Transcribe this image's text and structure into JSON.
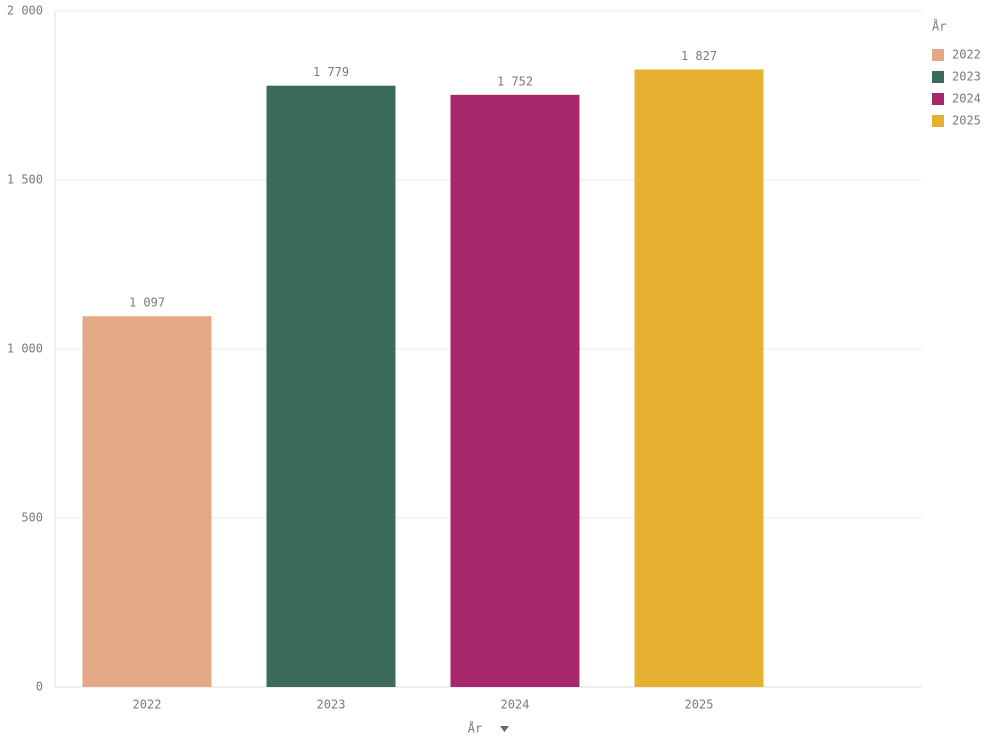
{
  "chart_data": {
    "type": "bar",
    "x_label": "År",
    "legend_title": "År",
    "categories": [
      "2022",
      "2023",
      "2024",
      "2025"
    ],
    "values": [
      1097,
      1779,
      1752,
      1827
    ],
    "value_labels": [
      "1 097",
      "1 779",
      "1 752",
      "1 827"
    ],
    "colors": [
      "#e3a987",
      "#3d6b59",
      "#a8296b",
      "#e6b030"
    ],
    "ylim": [
      0,
      2000
    ],
    "yticks": [
      0,
      500,
      {
        "value": 1000,
        "label": "1 000"
      },
      {
        "value": 1500,
        "label": "1 500"
      },
      {
        "value": 2000,
        "label": "2 000"
      }
    ],
    "grid": true,
    "legend": "top-right"
  }
}
